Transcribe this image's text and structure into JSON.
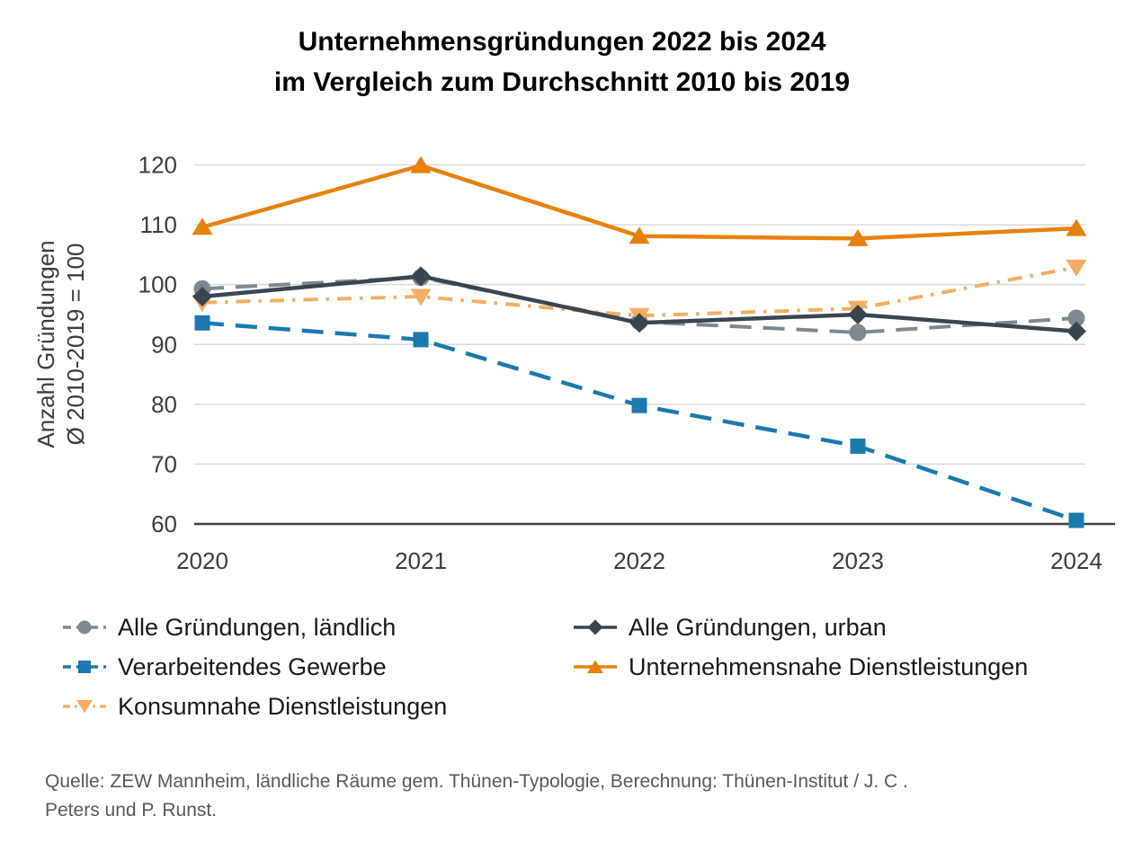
{
  "title": {
    "line1": "Unternehmensgründungen 2022 bis 2024",
    "line2": "im Vergleich zum Durchschnitt 2010 bis 2019"
  },
  "source": {
    "line1": "Quelle: ZEW Mannheim, ländliche Räume gem. Thünen-Typologie, Berechnung: Thünen-Institut / J. C .",
    "line2": "Peters und P. Runst."
  },
  "chart_data": {
    "type": "line",
    "x": [
      "2020",
      "2021",
      "2022",
      "2023",
      "2024"
    ],
    "ylabel_line1": "Anzahl Gründungen",
    "ylabel_line2": "Ø 2010-2019 = 100",
    "ylim": [
      60,
      120
    ],
    "yticks": [
      60,
      70,
      80,
      90,
      100,
      110,
      120
    ],
    "grid": true,
    "legend_position": "bottom",
    "colors": {
      "laendlich_gray": "#7E888F",
      "urban_dark": "#3A4550",
      "verarbeitendes_blue": "#1A7AAE",
      "unternehmensnahe_orange": "#E6810E",
      "konsumnahe_sandy": "#F2AE63",
      "gridline": "#D9D9D9",
      "axis": "#3F3F3F"
    },
    "series": [
      {
        "name": "Alle Gründungen, ländlich",
        "values": [
          99.3,
          101.2,
          93.8,
          92.0,
          94.4
        ],
        "color": "#7E888F",
        "line": "dashed",
        "marker": "circle"
      },
      {
        "name": "Alle Gründungen, urban",
        "values": [
          98.0,
          101.4,
          93.6,
          95.0,
          92.2
        ],
        "color": "#3A4550",
        "line": "solid",
        "marker": "diamond"
      },
      {
        "name": "Verarbeitendes Gewerbe",
        "values": [
          93.6,
          90.8,
          79.8,
          73.0,
          60.6
        ],
        "color": "#1A7AAE",
        "line": "dashed",
        "marker": "square"
      },
      {
        "name": "Unternehmensnahe Dienstleistungen",
        "values": [
          109.6,
          119.9,
          108.1,
          107.7,
          109.4
        ],
        "color": "#E6810E",
        "line": "solid",
        "marker": "triangle-up"
      },
      {
        "name": "Konsumnahe Dienstleistungen",
        "values": [
          97.0,
          98.0,
          94.8,
          96.0,
          102.9
        ],
        "color": "#F2AE63",
        "line": "dashdot",
        "marker": "triangle-down"
      }
    ],
    "draw_order": [
      0,
      4,
      2,
      1,
      3
    ],
    "legend_display_order": [
      0,
      1,
      2,
      3,
      4
    ]
  }
}
